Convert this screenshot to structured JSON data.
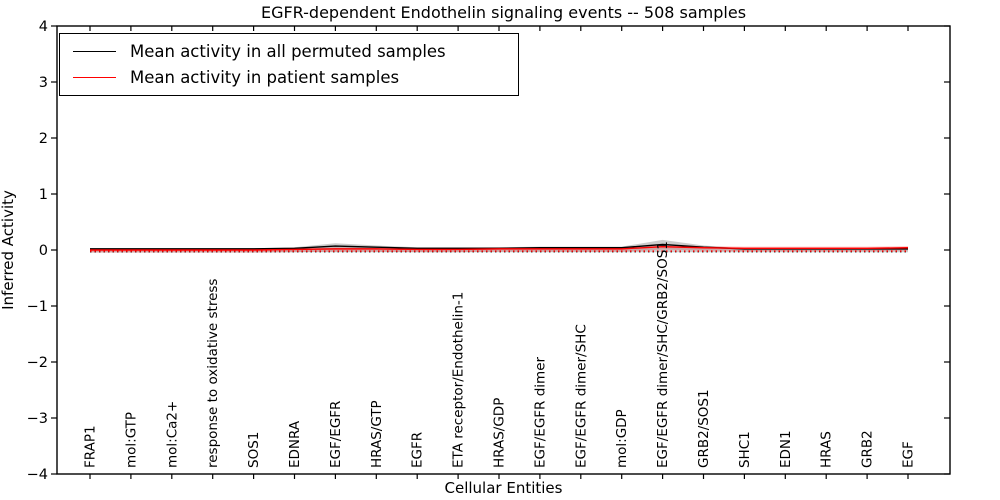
{
  "chart_data": {
    "type": "line",
    "title": "EGFR-dependent Endothelin signaling events -- 508 samples",
    "xlabel": "Cellular Entities",
    "ylabel": "Inferred Activity",
    "ylim": [
      -4,
      4
    ],
    "yticks": [
      4,
      3,
      2,
      1,
      0,
      -1,
      -2,
      -3,
      -4
    ],
    "ytick_labels": [
      "4",
      "3",
      "2",
      "1",
      "0",
      "−1",
      "−2",
      "−3",
      "−4"
    ],
    "grid": false,
    "legend_position": "upper-left",
    "axis_color": "#000000",
    "background_color": "#ffffff",
    "categories": [
      "FRAP1",
      "mol:GTP",
      "mol:Ca2+",
      "response to oxidative stress",
      "SOS1",
      "EDNRA",
      "EGF/EGFR",
      "HRAS/GTP",
      "EGFR",
      "ETA receptor/Endothelin-1",
      "HRAS/GDP",
      "EGF/EGFR dimer",
      "EGF/EGFR dimer/SHC",
      "mol:GDP",
      "EGF/EGFR dimer/SHC/GRB2/SOS1",
      "GRB2/SOS1",
      "SHC1",
      "EDN1",
      "HRAS",
      "GRB2",
      "EGF"
    ],
    "series": [
      {
        "name": "Mean activity in all permuted samples",
        "color": "#000000",
        "style": "solid",
        "values": [
          0.02,
          0.02,
          0.02,
          0.02,
          0.02,
          0.03,
          0.07,
          0.05,
          0.03,
          0.03,
          0.03,
          0.04,
          0.04,
          0.04,
          0.1,
          0.05,
          0.02,
          0.02,
          0.02,
          0.02,
          0.02
        ]
      },
      {
        "name": "Mean activity in patient samples",
        "color": "#ff0000",
        "style": "solid",
        "values": [
          0.0,
          0.0,
          0.0,
          0.0,
          0.0,
          0.01,
          0.02,
          0.02,
          0.01,
          0.01,
          0.02,
          0.02,
          0.02,
          0.02,
          0.06,
          0.04,
          0.03,
          0.03,
          0.03,
          0.03,
          0.04
        ]
      },
      {
        "name": "permuted-lower-dotted",
        "color": "#000000",
        "style": "dotted",
        "values": [
          -0.03,
          -0.03,
          -0.03,
          -0.03,
          -0.03,
          -0.03,
          -0.03,
          -0.03,
          -0.03,
          -0.03,
          -0.03,
          -0.03,
          -0.03,
          -0.03,
          -0.03,
          -0.03,
          -0.03,
          -0.03,
          -0.03,
          -0.03,
          -0.03
        ]
      },
      {
        "name": "patient-lower-dotted",
        "color": "#ff0000",
        "style": "dotted",
        "values": [
          -0.02,
          -0.02,
          -0.02,
          -0.02,
          -0.02,
          -0.02,
          -0.02,
          -0.02,
          -0.02,
          -0.02,
          -0.02,
          -0.02,
          -0.02,
          -0.02,
          -0.02,
          -0.02,
          -0.02,
          -0.02,
          -0.02,
          -0.02,
          -0.02
        ]
      }
    ],
    "bands": [
      {
        "name": "patient-range-band",
        "color": "#ff0000",
        "opacity": 0.22,
        "upper": [
          0.03,
          0.03,
          0.03,
          0.03,
          0.03,
          0.04,
          0.05,
          0.05,
          0.04,
          0.04,
          0.05,
          0.05,
          0.05,
          0.05,
          0.09,
          0.07,
          0.06,
          0.06,
          0.06,
          0.06,
          0.07
        ],
        "lower": [
          -0.05,
          -0.05,
          -0.05,
          -0.05,
          -0.05,
          -0.04,
          -0.03,
          -0.03,
          -0.04,
          -0.04,
          -0.03,
          -0.03,
          -0.03,
          -0.03,
          0.01,
          -0.01,
          -0.02,
          -0.02,
          -0.02,
          -0.02,
          -0.01
        ]
      },
      {
        "name": "permuted-range-band",
        "color": "#555555",
        "opacity": 0.3,
        "upper": [
          0.03,
          0.03,
          0.03,
          0.03,
          0.03,
          0.05,
          0.12,
          0.08,
          0.05,
          0.05,
          0.05,
          0.06,
          0.06,
          0.06,
          0.18,
          0.08,
          0.03,
          0.03,
          0.03,
          0.03,
          0.03
        ],
        "lower": [
          -0.04,
          -0.04,
          -0.04,
          -0.04,
          -0.04,
          -0.04,
          -0.04,
          -0.04,
          -0.04,
          -0.04,
          -0.04,
          -0.04,
          -0.04,
          -0.04,
          -0.04,
          -0.04,
          -0.04,
          -0.04,
          -0.04,
          -0.04,
          -0.04
        ]
      }
    ]
  }
}
